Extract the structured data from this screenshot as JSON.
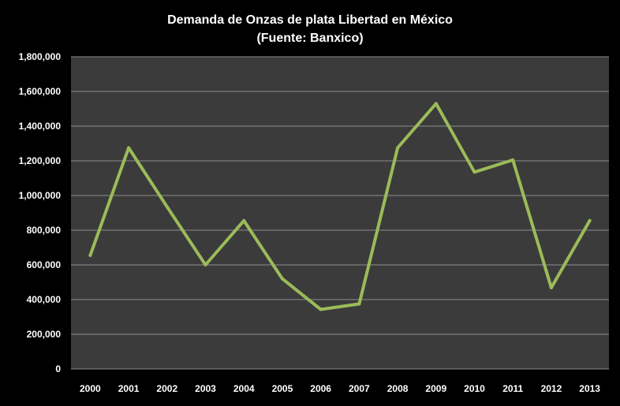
{
  "chart_data": {
    "type": "line",
    "title": "Demanda de Onzas de plata Libertad en México",
    "subtitle": "(Fuente: Banxico)",
    "xlabel": "",
    "ylabel": "",
    "x": [
      "2000",
      "2001",
      "2002",
      "2003",
      "2004",
      "2005",
      "2006",
      "2007",
      "2008",
      "2009",
      "2010",
      "2011",
      "2012",
      "2013"
    ],
    "series": [
      {
        "values": [
          655000,
          1275000,
          935000,
          600000,
          855000,
          520000,
          343000,
          375000,
          1275000,
          1530000,
          1135000,
          1205000,
          468000,
          855000
        ]
      }
    ],
    "ylim": [
      0,
      1800000
    ],
    "yticks": [
      "0",
      "200,000",
      "400,000",
      "600,000",
      "800,000",
      "1,000,000",
      "1,200,000",
      "1,400,000",
      "1,600,000",
      "1,800,000"
    ],
    "grid": true,
    "legend": "none",
    "colors": {
      "background": "#000000",
      "plot_area": "#3b3b3b",
      "grid": "#8c8c8c",
      "line": "#9bbb59",
      "text": "#ffffff"
    }
  }
}
